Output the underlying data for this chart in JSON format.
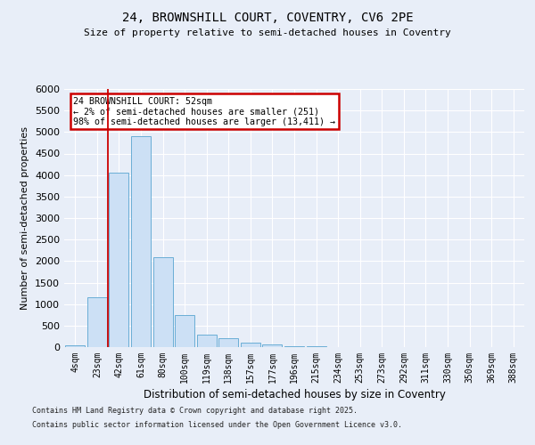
{
  "title_line1": "24, BROWNSHILL COURT, COVENTRY, CV6 2PE",
  "title_line2": "Size of property relative to semi-detached houses in Coventry",
  "xlabel": "Distribution of semi-detached houses by size in Coventry",
  "ylabel": "Number of semi-detached properties",
  "categories": [
    "4sqm",
    "23sqm",
    "42sqm",
    "61sqm",
    "80sqm",
    "100sqm",
    "119sqm",
    "138sqm",
    "157sqm",
    "177sqm",
    "196sqm",
    "215sqm",
    "234sqm",
    "253sqm",
    "273sqm",
    "292sqm",
    "311sqm",
    "330sqm",
    "350sqm",
    "369sqm",
    "388sqm"
  ],
  "values": [
    50,
    1150,
    4050,
    4900,
    2100,
    750,
    300,
    200,
    100,
    60,
    30,
    15,
    5,
    0,
    0,
    0,
    0,
    0,
    0,
    0,
    0
  ],
  "bar_color": "#cce0f5",
  "bar_edge_color": "#6aaed6",
  "vline_x": 1.5,
  "vline_color": "#cc0000",
  "ylim": [
    0,
    6000
  ],
  "yticks": [
    0,
    500,
    1000,
    1500,
    2000,
    2500,
    3000,
    3500,
    4000,
    4500,
    5000,
    5500,
    6000
  ],
  "annotation_title": "24 BROWNSHILL COURT: 52sqm",
  "annotation_line1": "← 2% of semi-detached houses are smaller (251)",
  "annotation_line2": "98% of semi-detached houses are larger (13,411) →",
  "annotation_box_color": "#cc0000",
  "footer_line1": "Contains HM Land Registry data © Crown copyright and database right 2025.",
  "footer_line2": "Contains public sector information licensed under the Open Government Licence v3.0.",
  "bg_color": "#e8eef8",
  "plot_bg_color": "#e8eef8",
  "grid_color": "#ffffff"
}
